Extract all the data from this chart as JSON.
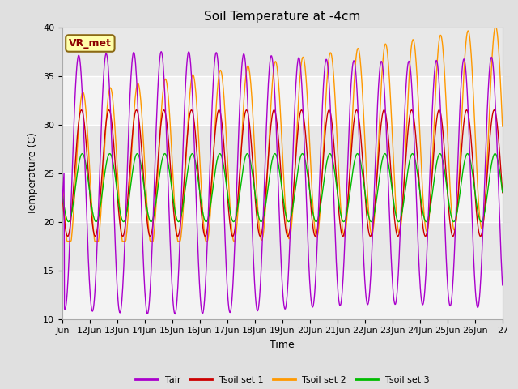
{
  "title": "Soil Temperature at -4cm",
  "xlabel": "Time",
  "ylabel": "Temperature (C)",
  "ylim": [
    10,
    40
  ],
  "xlim": [
    0,
    16
  ],
  "fig_bg": "#e0e0e0",
  "plot_bg": "#e8e8e8",
  "annotation_text": "VR_met",
  "annotation_fg": "#8b0000",
  "annotation_bg": "#ffffaa",
  "annotation_border": "#8b6914",
  "colors": {
    "Tair": "#aa00cc",
    "Tsoil_set1": "#cc0000",
    "Tsoil_set2": "#ff9900",
    "Tsoil_set3": "#00bb00"
  },
  "xtick_labels": [
    "Jun",
    "12Jun",
    "13Jun",
    "14Jun",
    "15Jun",
    "16Jun",
    "17Jun",
    "18Jun",
    "19Jun",
    "20Jun",
    "21Jun",
    "22Jun",
    "23Jun",
    "24Jun",
    "25Jun",
    "26Jun",
    "27"
  ],
  "xtick_positions": [
    0,
    1,
    2,
    3,
    4,
    5,
    6,
    7,
    8,
    9,
    10,
    11,
    12,
    13,
    14,
    15,
    16
  ],
  "ytick_positions": [
    10,
    15,
    20,
    25,
    30,
    35,
    40
  ],
  "n_points": 960,
  "days": 16
}
